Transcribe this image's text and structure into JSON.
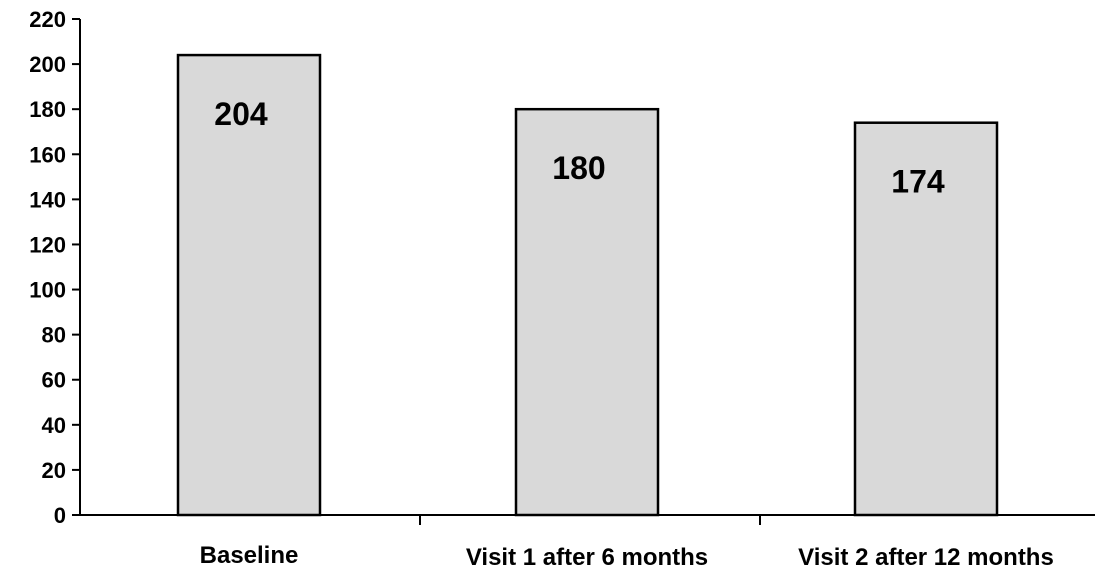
{
  "chart_data": {
    "type": "bar",
    "categories": [
      "Baseline",
      "Visit 1 after 6 months",
      "Visit 2 after 12 months"
    ],
    "values": [
      204,
      180,
      174
    ],
    "data_labels": [
      "204",
      "180",
      "174"
    ],
    "title": "",
    "xlabel": "",
    "ylabel": "",
    "ylim": [
      0,
      220
    ],
    "yticks": [
      0,
      20,
      40,
      60,
      80,
      100,
      120,
      140,
      160,
      180,
      200,
      220
    ],
    "grid": false,
    "bar_color": "#d9d9d9",
    "edge_color": "#000000"
  }
}
